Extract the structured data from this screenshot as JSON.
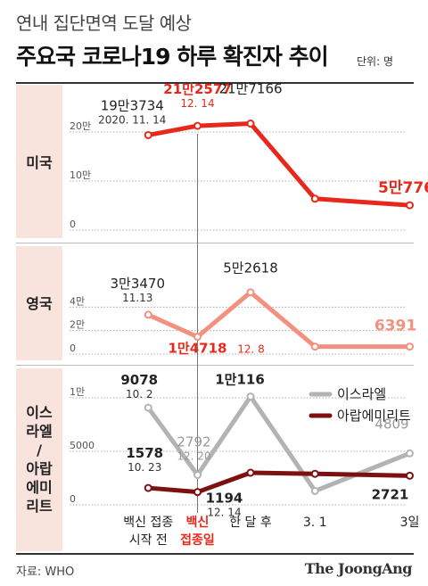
{
  "header": {
    "supertitle": "연내 집단면역 도달 예상",
    "title": "주요국 코로나19 하루 확진자 추이",
    "unit": "단위: 명"
  },
  "sections": {
    "us": "미국",
    "uk": "영국",
    "il_ae": [
      "이스",
      "라엘",
      "/",
      "아랍",
      "에미",
      "리트"
    ]
  },
  "footer": {
    "source": "자료: WHO",
    "logo": "The JoongAng"
  },
  "colors": {
    "us": "#e8281a",
    "uk": "#f2917f",
    "israel": "#b3b3b3",
    "uae": "#7d1010",
    "band": "#f8e4dd",
    "highlight": "#e8281a"
  },
  "chart_data": {
    "type": "line",
    "categories": [
      "백신 접종 시작 전",
      "백신 접종일",
      "한 달 후",
      "3. 1",
      "3일"
    ],
    "category_lines": [
      [
        "백신 접종",
        "시작 전"
      ],
      [
        "백신",
        "접종일"
      ],
      [
        "한 달 후"
      ],
      [
        "3. 1"
      ],
      [
        "3일"
      ]
    ],
    "highlight_category": 1,
    "panels": [
      {
        "id": "us",
        "ylim": [
          0,
          220000
        ],
        "yticks": [
          {
            "v": 0,
            "label": "0"
          },
          {
            "v": 100000,
            "label": "10만"
          },
          {
            "v": 200000,
            "label": "20만"
          }
        ],
        "series": [
          {
            "name": "미국",
            "color": "us",
            "x": [
              0.25,
              0.9,
              1.6,
              2.45,
              3.7
            ],
            "values": [
              193734,
              212577,
              217166,
              64000,
              50776
            ],
            "labels": [
              {
                "i": 0,
                "text": "19만3734",
                "sub": "2020. 11. 14"
              },
              {
                "i": 1,
                "text": "21만2577",
                "sub": "12. 14",
                "highlight": true
              },
              {
                "i": 2,
                "text": "21만7166"
              },
              {
                "i": 4,
                "text": "5만776",
                "color": "us"
              }
            ]
          }
        ]
      },
      {
        "id": "uk",
        "ylim": [
          0,
          60000
        ],
        "yticks": [
          {
            "v": 0,
            "label": "0"
          },
          {
            "v": 20000,
            "label": "2만"
          },
          {
            "v": 40000,
            "label": "4만"
          }
        ],
        "series": [
          {
            "name": "영국",
            "color": "uk",
            "x": [
              0.25,
              0.9,
              1.6,
              2.45,
              3.7
            ],
            "values": [
              33470,
              14718,
              52618,
              6391,
              6391
            ],
            "labels": [
              {
                "i": 0,
                "text": "3만3470",
                "sub": "11.13"
              },
              {
                "i": 1,
                "text": "1만4718",
                "sub": "12. 8",
                "highlight": true
              },
              {
                "i": 2,
                "text": "5만2618"
              },
              {
                "i": 4,
                "text": "6391",
                "color": "uk"
              }
            ]
          }
        ]
      },
      {
        "id": "il_ae",
        "ylim": [
          0,
          11000
        ],
        "yticks": [
          {
            "v": 0,
            "label": "0"
          },
          {
            "v": 5000,
            "label": "5000"
          },
          {
            "v": 10000,
            "label": "1만"
          }
        ],
        "legend": [
          {
            "name": "이스라엘",
            "color": "israel"
          },
          {
            "name": "아랍에미리트",
            "color": "uae"
          }
        ],
        "series": [
          {
            "name": "이스라엘",
            "color": "israel",
            "x": [
              0.25,
              0.9,
              1.6,
              2.45,
              3.7
            ],
            "values": [
              9078,
              2792,
              10116,
              1300,
              4809
            ],
            "labels": [
              {
                "i": 0,
                "text": "9078",
                "sub": "10. 2",
                "dark": true
              },
              {
                "i": 1,
                "text": "2792",
                "sub": "12. 20"
              },
              {
                "i": 2,
                "text": "1만116",
                "dark": true
              },
              {
                "i": 4,
                "text": "4809"
              }
            ]
          },
          {
            "name": "아랍에미리트",
            "color": "uae",
            "x": [
              0.25,
              0.9,
              1.6,
              2.45,
              3.7
            ],
            "values": [
              1578,
              1194,
              3000,
              2900,
              2721
            ],
            "labels": [
              {
                "i": 0,
                "text": "1578",
                "sub": "10. 23"
              },
              {
                "i": 1,
                "text": "1194",
                "sub": "12. 14"
              },
              {
                "i": 4,
                "text": "2721"
              }
            ]
          }
        ]
      }
    ]
  }
}
